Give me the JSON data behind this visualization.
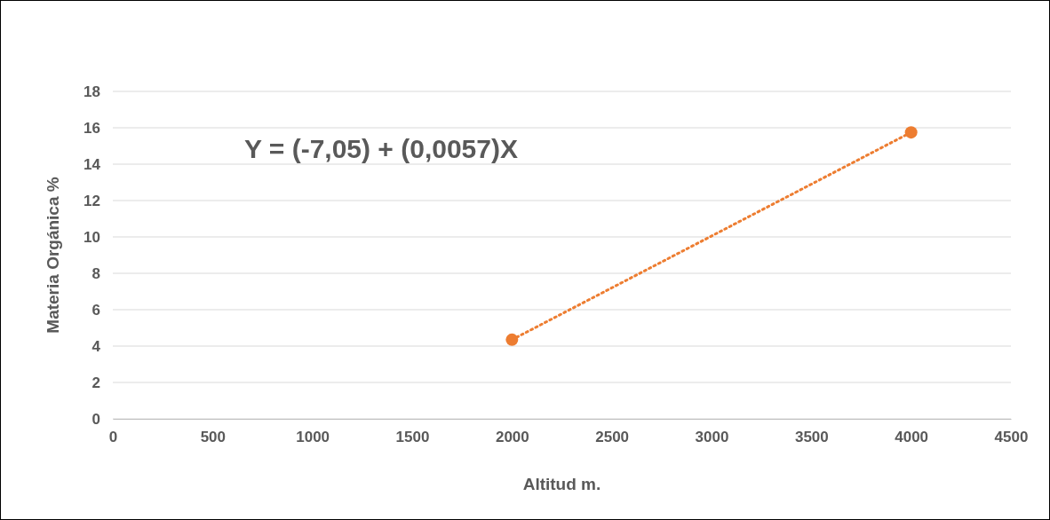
{
  "chart_data": {
    "type": "scatter",
    "xlabel": "Altitud m.",
    "ylabel": "Materia Orgánica %",
    "xlim": [
      0,
      4500
    ],
    "xticks": [
      0,
      500,
      1000,
      1500,
      2000,
      2500,
      3000,
      3500,
      4000,
      4500
    ],
    "ylim": [
      0,
      18
    ],
    "yticks": [
      0,
      2,
      4,
      6,
      8,
      10,
      12,
      14,
      16,
      18
    ],
    "grid": "y",
    "marker": "circle",
    "x": [
      2000,
      4000
    ],
    "series": [
      {
        "type": "scatter",
        "color": "#ed7d31",
        "values": [
          4.35,
          15.75
        ]
      },
      {
        "type": "line",
        "color": "#ed7d31",
        "line_style": "dotted",
        "marker": "none",
        "values": [
          4.35,
          15.75
        ]
      }
    ],
    "annotations": [
      "Y = (-7,05) + (0,0057)X"
    ]
  }
}
